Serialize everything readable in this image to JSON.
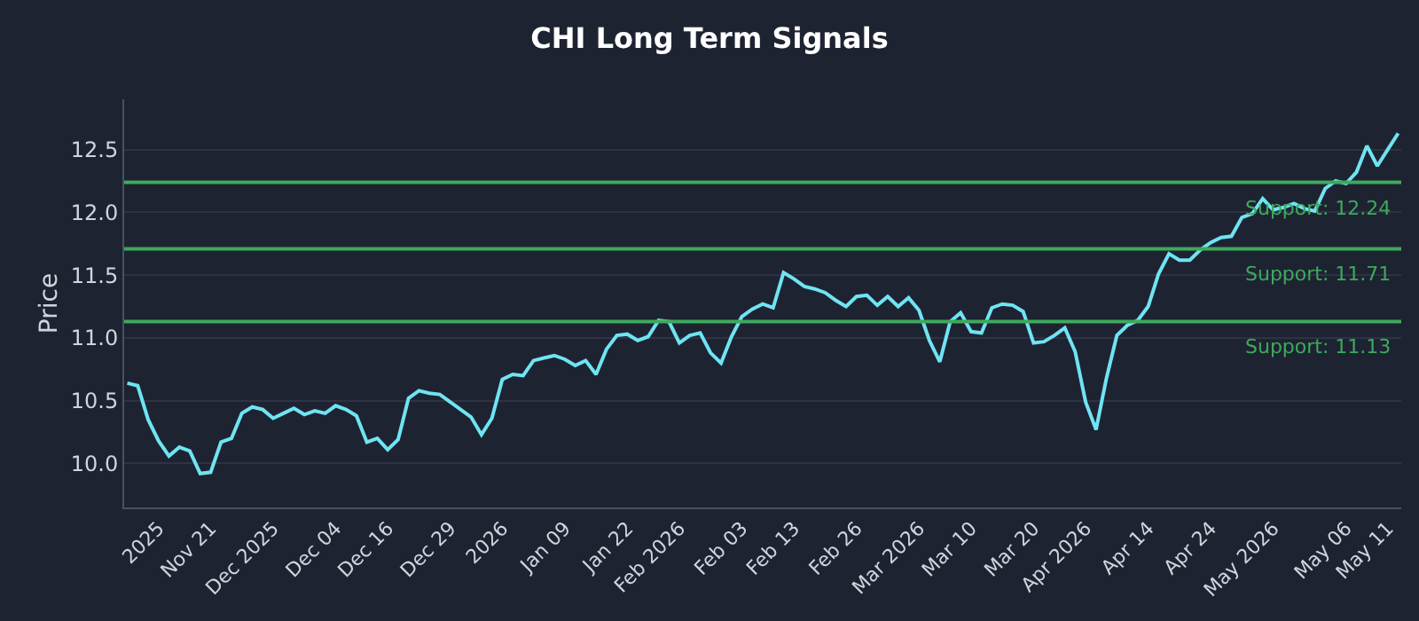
{
  "chart_data": {
    "type": "line",
    "title": "CHI Long Term Signals",
    "ylabel": "Price",
    "categories": [
      null,
      null,
      null,
      "2025",
      null,
      null,
      null,
      null,
      "Nov 21",
      null,
      null,
      null,
      null,
      null,
      "Dec 2025",
      null,
      null,
      null,
      null,
      null,
      "Dec 04",
      null,
      null,
      null,
      null,
      "Dec 16",
      null,
      null,
      null,
      null,
      null,
      "Dec 29",
      null,
      null,
      null,
      null,
      "2026",
      null,
      null,
      null,
      null,
      null,
      "Jan 09",
      null,
      null,
      null,
      null,
      null,
      "Jan 22",
      null,
      null,
      null,
      null,
      "Feb 2026",
      null,
      null,
      null,
      null,
      null,
      "Feb 03",
      null,
      null,
      null,
      null,
      "Feb 13",
      null,
      null,
      null,
      null,
      null,
      "Feb 26",
      null,
      null,
      null,
      null,
      null,
      "Mar 2026",
      null,
      null,
      null,
      null,
      "Mar 10",
      null,
      null,
      null,
      null,
      null,
      "Mar 20",
      null,
      null,
      null,
      null,
      "Apr 2026",
      null,
      null,
      null,
      null,
      null,
      "Apr 14",
      null,
      null,
      null,
      null,
      null,
      "Apr 24",
      null,
      null,
      null,
      null,
      null,
      "May 2026",
      null,
      null,
      null,
      null,
      null,
      null,
      "May 06",
      null,
      null,
      null,
      "May 11",
      null
    ],
    "series": [
      {
        "color": "#6fe4f2",
        "values": [
          10.64,
          10.62,
          10.35,
          10.18,
          10.06,
          10.13,
          10.1,
          9.92,
          9.93,
          10.17,
          10.2,
          10.4,
          10.45,
          10.43,
          10.36,
          10.4,
          10.44,
          10.39,
          10.42,
          10.4,
          10.46,
          10.43,
          10.38,
          10.17,
          10.2,
          10.11,
          10.19,
          10.52,
          10.58,
          10.56,
          10.55,
          10.49,
          10.43,
          10.37,
          10.23,
          10.36,
          10.67,
          10.71,
          10.7,
          10.82,
          10.84,
          10.86,
          10.83,
          10.78,
          10.82,
          10.71,
          10.91,
          11.02,
          11.03,
          10.98,
          11.01,
          11.14,
          11.13,
          10.96,
          11.02,
          11.04,
          10.88,
          10.8,
          11.01,
          11.17,
          11.23,
          11.27,
          11.24,
          11.52,
          11.47,
          11.41,
          11.39,
          11.36,
          11.3,
          11.25,
          11.33,
          11.34,
          11.26,
          11.33,
          11.25,
          11.32,
          11.22,
          10.98,
          10.81,
          11.13,
          11.2,
          11.05,
          11.04,
          11.24,
          11.27,
          11.26,
          11.21,
          10.96,
          10.97,
          11.02,
          11.08,
          10.89,
          10.49,
          10.27,
          10.68,
          11.02,
          11.1,
          11.14,
          11.25,
          11.51,
          11.67,
          11.62,
          11.62,
          11.7,
          11.76,
          11.8,
          11.81,
          11.96,
          11.99,
          12.11,
          12.02,
          12.04,
          12.07,
          12.03,
          12.01,
          12.19,
          12.25,
          12.23,
          12.32,
          12.53,
          12.37,
          12.5,
          12.63
        ]
      }
    ],
    "ylim": [
      9.65,
      12.9
    ],
    "yticks": [
      {
        "value": 10,
        "label": "10.0"
      },
      10.5,
      {
        "value": 11,
        "label": "11.0"
      },
      11.5,
      {
        "value": 12,
        "label": "12.0"
      },
      12.5
    ],
    "ref_lines": [
      {
        "axis": "y",
        "value": 12.24,
        "label": "Support: 12.24",
        "color": "#3daa5c"
      },
      {
        "axis": "y",
        "value": 11.71,
        "label": "Support: 11.71",
        "color": "#3daa5c"
      },
      {
        "axis": "y",
        "value": 11.13,
        "label": "Support: 11.13",
        "color": "#3daa5c"
      }
    ],
    "grid": "y",
    "marker": "none",
    "line_style": "solid"
  }
}
